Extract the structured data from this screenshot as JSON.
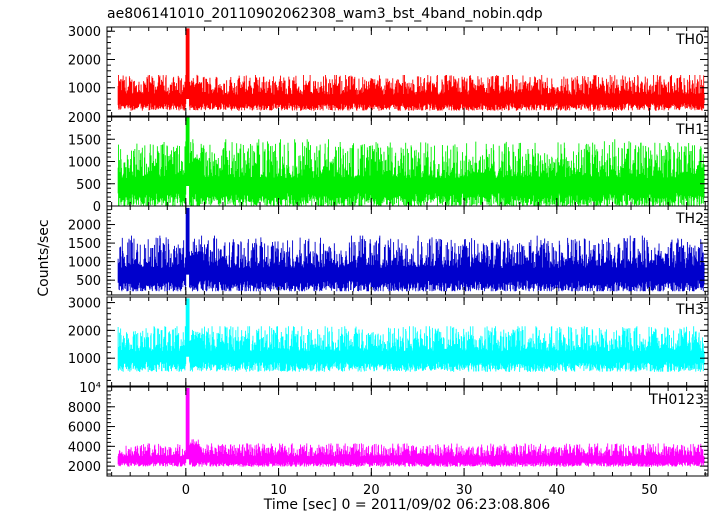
{
  "chart_data": {
    "type": "line",
    "title": "ae806141010_20110902062308_wam3_bst_4band_nobin.qdp",
    "xlabel": "Time [sec] 0 = 2011/09/02 06:23:08.806",
    "ylabel": "Counts/sec",
    "xlim": [
      -8.5,
      56.3
    ],
    "x_ticks": [
      0,
      10,
      20,
      30,
      40,
      50
    ],
    "x_tick_labels": [
      "0",
      "10",
      "20",
      "30",
      "40",
      "50"
    ],
    "x_minor_step": 2,
    "burst_time": 0.1,
    "grid": false,
    "panels": [
      {
        "name": "TH0",
        "color": "#ff0000",
        "ylim": [
          0,
          3150
        ],
        "y_ticks": [
          1000,
          2000,
          3000
        ],
        "y_tick_labels": [
          "1000",
          "2000",
          "3000"
        ],
        "baseline": 600,
        "noise_range": [
          150,
          1450
        ],
        "burst_peak": 3100,
        "after_burst_level": 1100
      },
      {
        "name": "TH1",
        "color": "#00ee00",
        "ylim": [
          0,
          2000
        ],
        "y_ticks": [
          0,
          500,
          1000,
          1500,
          2000
        ],
        "y_tick_labels": [
          "0",
          "500",
          "1000",
          "1500",
          "2000"
        ],
        "baseline": 450,
        "noise_range": [
          0,
          1500
        ],
        "burst_peak": 2000,
        "after_burst_level": 1000
      },
      {
        "name": "TH2",
        "color": "#0000cc",
        "ylim": [
          100,
          2500
        ],
        "y_ticks": [
          500,
          1000,
          1500,
          2000
        ],
        "y_tick_labels": [
          "500",
          "1000",
          "1500",
          "2000"
        ],
        "baseline": 650,
        "noise_range": [
          200,
          1700
        ],
        "burst_peak": 2450,
        "after_burst_level": 1200
      },
      {
        "name": "TH3",
        "color": "#00ffff",
        "ylim": [
          0,
          3200
        ],
        "y_ticks": [
          1000,
          2000,
          3000
        ],
        "y_tick_labels": [
          "1000",
          "2000",
          "3000"
        ],
        "baseline": 1050,
        "noise_range": [
          450,
          2150
        ],
        "burst_peak": 3150,
        "after_burst_level": 1800
      },
      {
        "name": "TH0123",
        "color": "#ff00ff",
        "ylim": [
          1000,
          10000
        ],
        "y_ticks": [
          2000,
          4000,
          6000,
          8000,
          10000
        ],
        "y_tick_labels": [
          "2000",
          "4000",
          "6000",
          "8000",
          "10⁴"
        ],
        "baseline": 2700,
        "noise_range": [
          1900,
          4300
        ],
        "burst_peak": 9900,
        "after_burst_level": 4300
      }
    ]
  }
}
